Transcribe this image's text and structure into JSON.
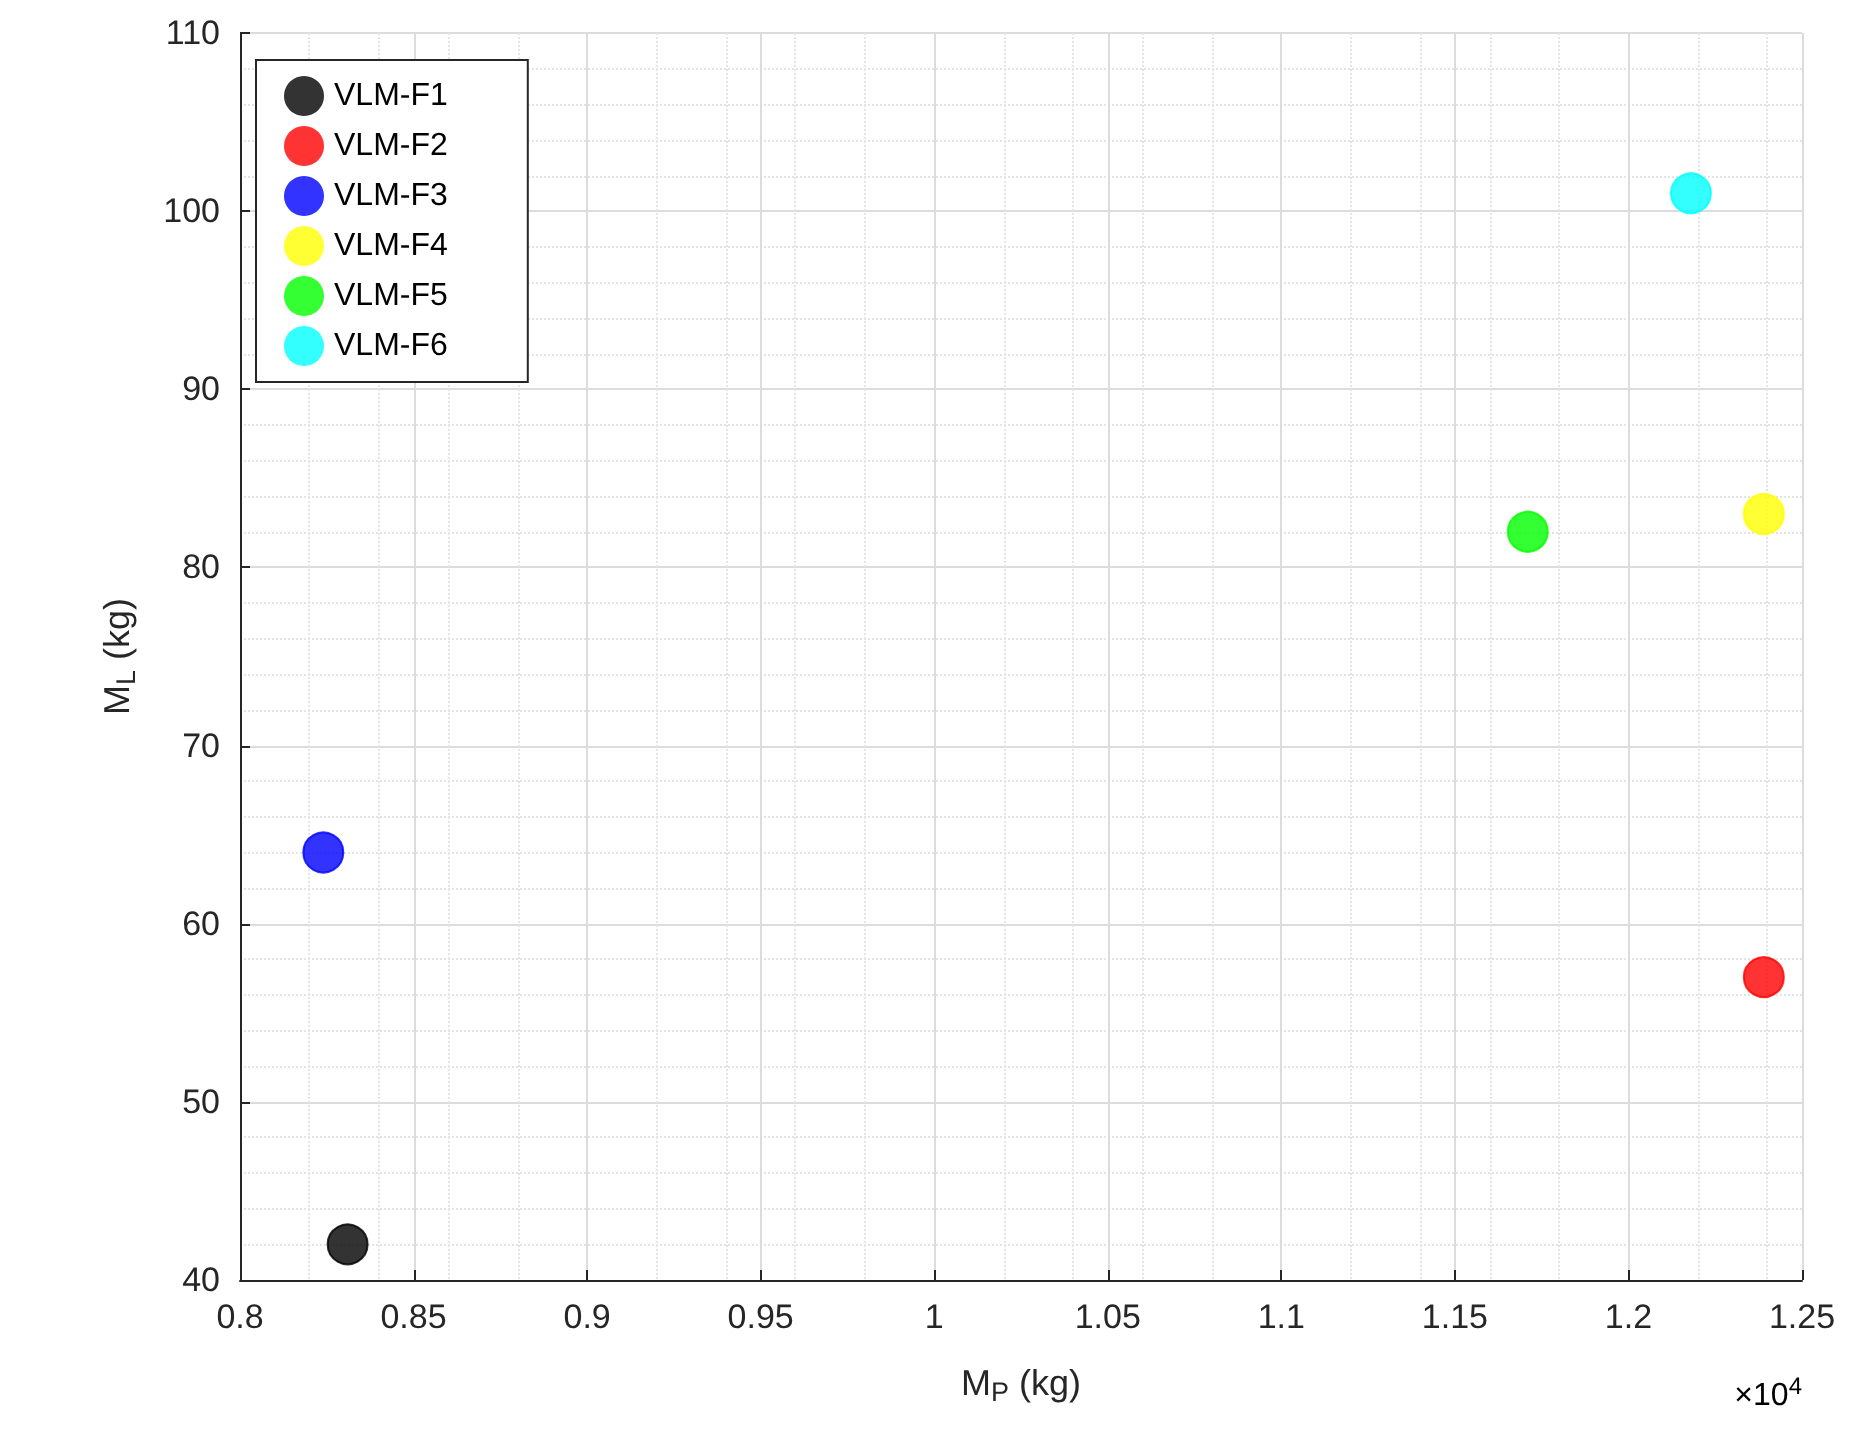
{
  "chart_data": {
    "type": "scatter",
    "xlabel": "M$_{P}$ (kg)",
    "ylabel": "M$_{L}$ (kg)",
    "annotations": [
      "×10$^{4}$"
    ],
    "xlim": [
      0.8,
      1.25
    ],
    "xticks": [
      0.8,
      0.85,
      0.9,
      0.95,
      1,
      1.05,
      1.1,
      1.15,
      1.2,
      1.25
    ],
    "ylim": [
      40,
      110
    ],
    "yticks": [
      40,
      50,
      60,
      70,
      80,
      90,
      100,
      110
    ],
    "grid": true,
    "legend": "top left",
    "marker": "circle",
    "series": [
      {
        "name": "VLM-F1",
        "color": "#000000",
        "x": [
          0.831
        ],
        "values": [
          42
        ]
      },
      {
        "name": "VLM-F2",
        "color": "#ff0000",
        "x": [
          1.239
        ],
        "values": [
          57
        ]
      },
      {
        "name": "VLM-F3",
        "color": "#0000ff",
        "x": [
          0.824
        ],
        "values": [
          64
        ]
      },
      {
        "name": "VLM-F4",
        "color": "#ffff00",
        "x": [
          1.239
        ],
        "values": [
          83
        ]
      },
      {
        "name": "VLM-F5",
        "color": "#00ff00",
        "x": [
          1.171
        ],
        "values": [
          82
        ]
      },
      {
        "name": "VLM-F6",
        "color": "#00ffff",
        "x": [
          1.218
        ],
        "values": [
          101
        ]
      }
    ]
  }
}
